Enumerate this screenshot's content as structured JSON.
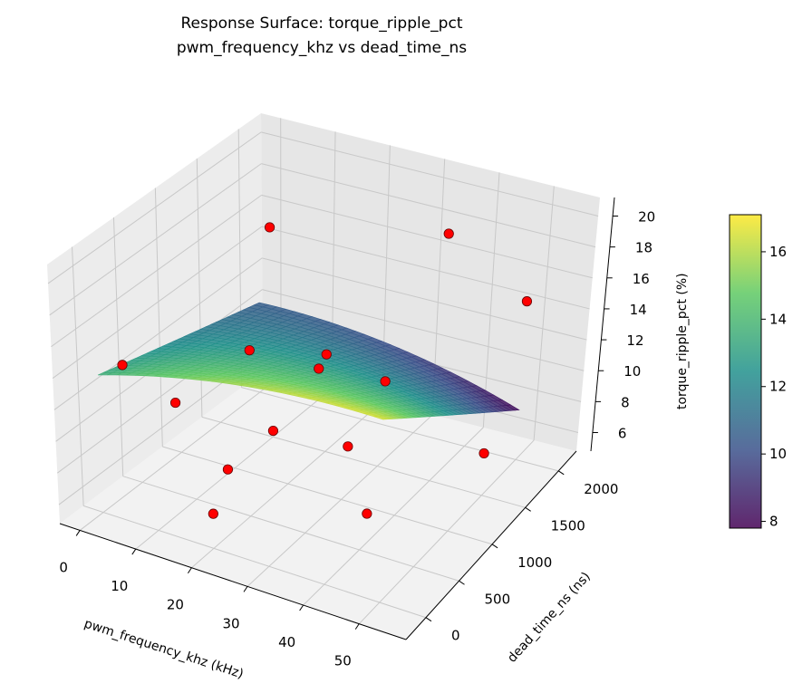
{
  "chart_data": {
    "type": "surface3d",
    "title": "Response Surface: torque_ripple_pct",
    "subtitle": "pwm_frequency_khz vs dead_time_ns",
    "xlabel": "pwm_frequency_khz (kHz)",
    "ylabel": "dead_time_ns (ns)",
    "zlabel": "torque_ripple_pct (%)",
    "xlim": [
      -3.6,
      58.4
    ],
    "ylim": [
      -300,
      2270
    ],
    "zlim": [
      4.8,
      21.2
    ],
    "xticks": [
      0,
      10,
      20,
      30,
      40,
      50
    ],
    "yticks": [
      0,
      500,
      1000,
      1500,
      2000
    ],
    "zticks": [
      6,
      8,
      10,
      12,
      14,
      16,
      18,
      20
    ],
    "surface": {
      "x_range": [
        0,
        50
      ],
      "y_range": [
        0,
        2000
      ],
      "model": {
        "const": 13.5,
        "x": 0.12,
        "y": -0.0015,
        "xy": -5.5e-05,
        "x2": -0.0012,
        "y2": 0
      },
      "colormap": "viridis",
      "alpha": 0.85
    },
    "points": {
      "color": "#ff0000",
      "data": [
        [
          5,
          1800,
          16.5
        ],
        [
          0,
          300,
          13
        ],
        [
          10,
          1200,
          11.5
        ],
        [
          20,
          1500,
          11
        ],
        [
          20,
          1400,
          10.5
        ],
        [
          5,
          600,
          10
        ],
        [
          20,
          800,
          9
        ],
        [
          35,
          2000,
          18
        ],
        [
          50,
          2000,
          15
        ],
        [
          35,
          1200,
          12
        ],
        [
          35,
          700,
          10
        ],
        [
          50,
          1500,
          7.5
        ],
        [
          20,
          200,
          9
        ],
        [
          20,
          0,
          7
        ],
        [
          45,
          200,
          9
        ]
      ]
    },
    "colorbar": {
      "range": [
        7.8,
        17.1
      ],
      "ticks": [
        8,
        10,
        12,
        14,
        16
      ]
    },
    "grid": true
  }
}
